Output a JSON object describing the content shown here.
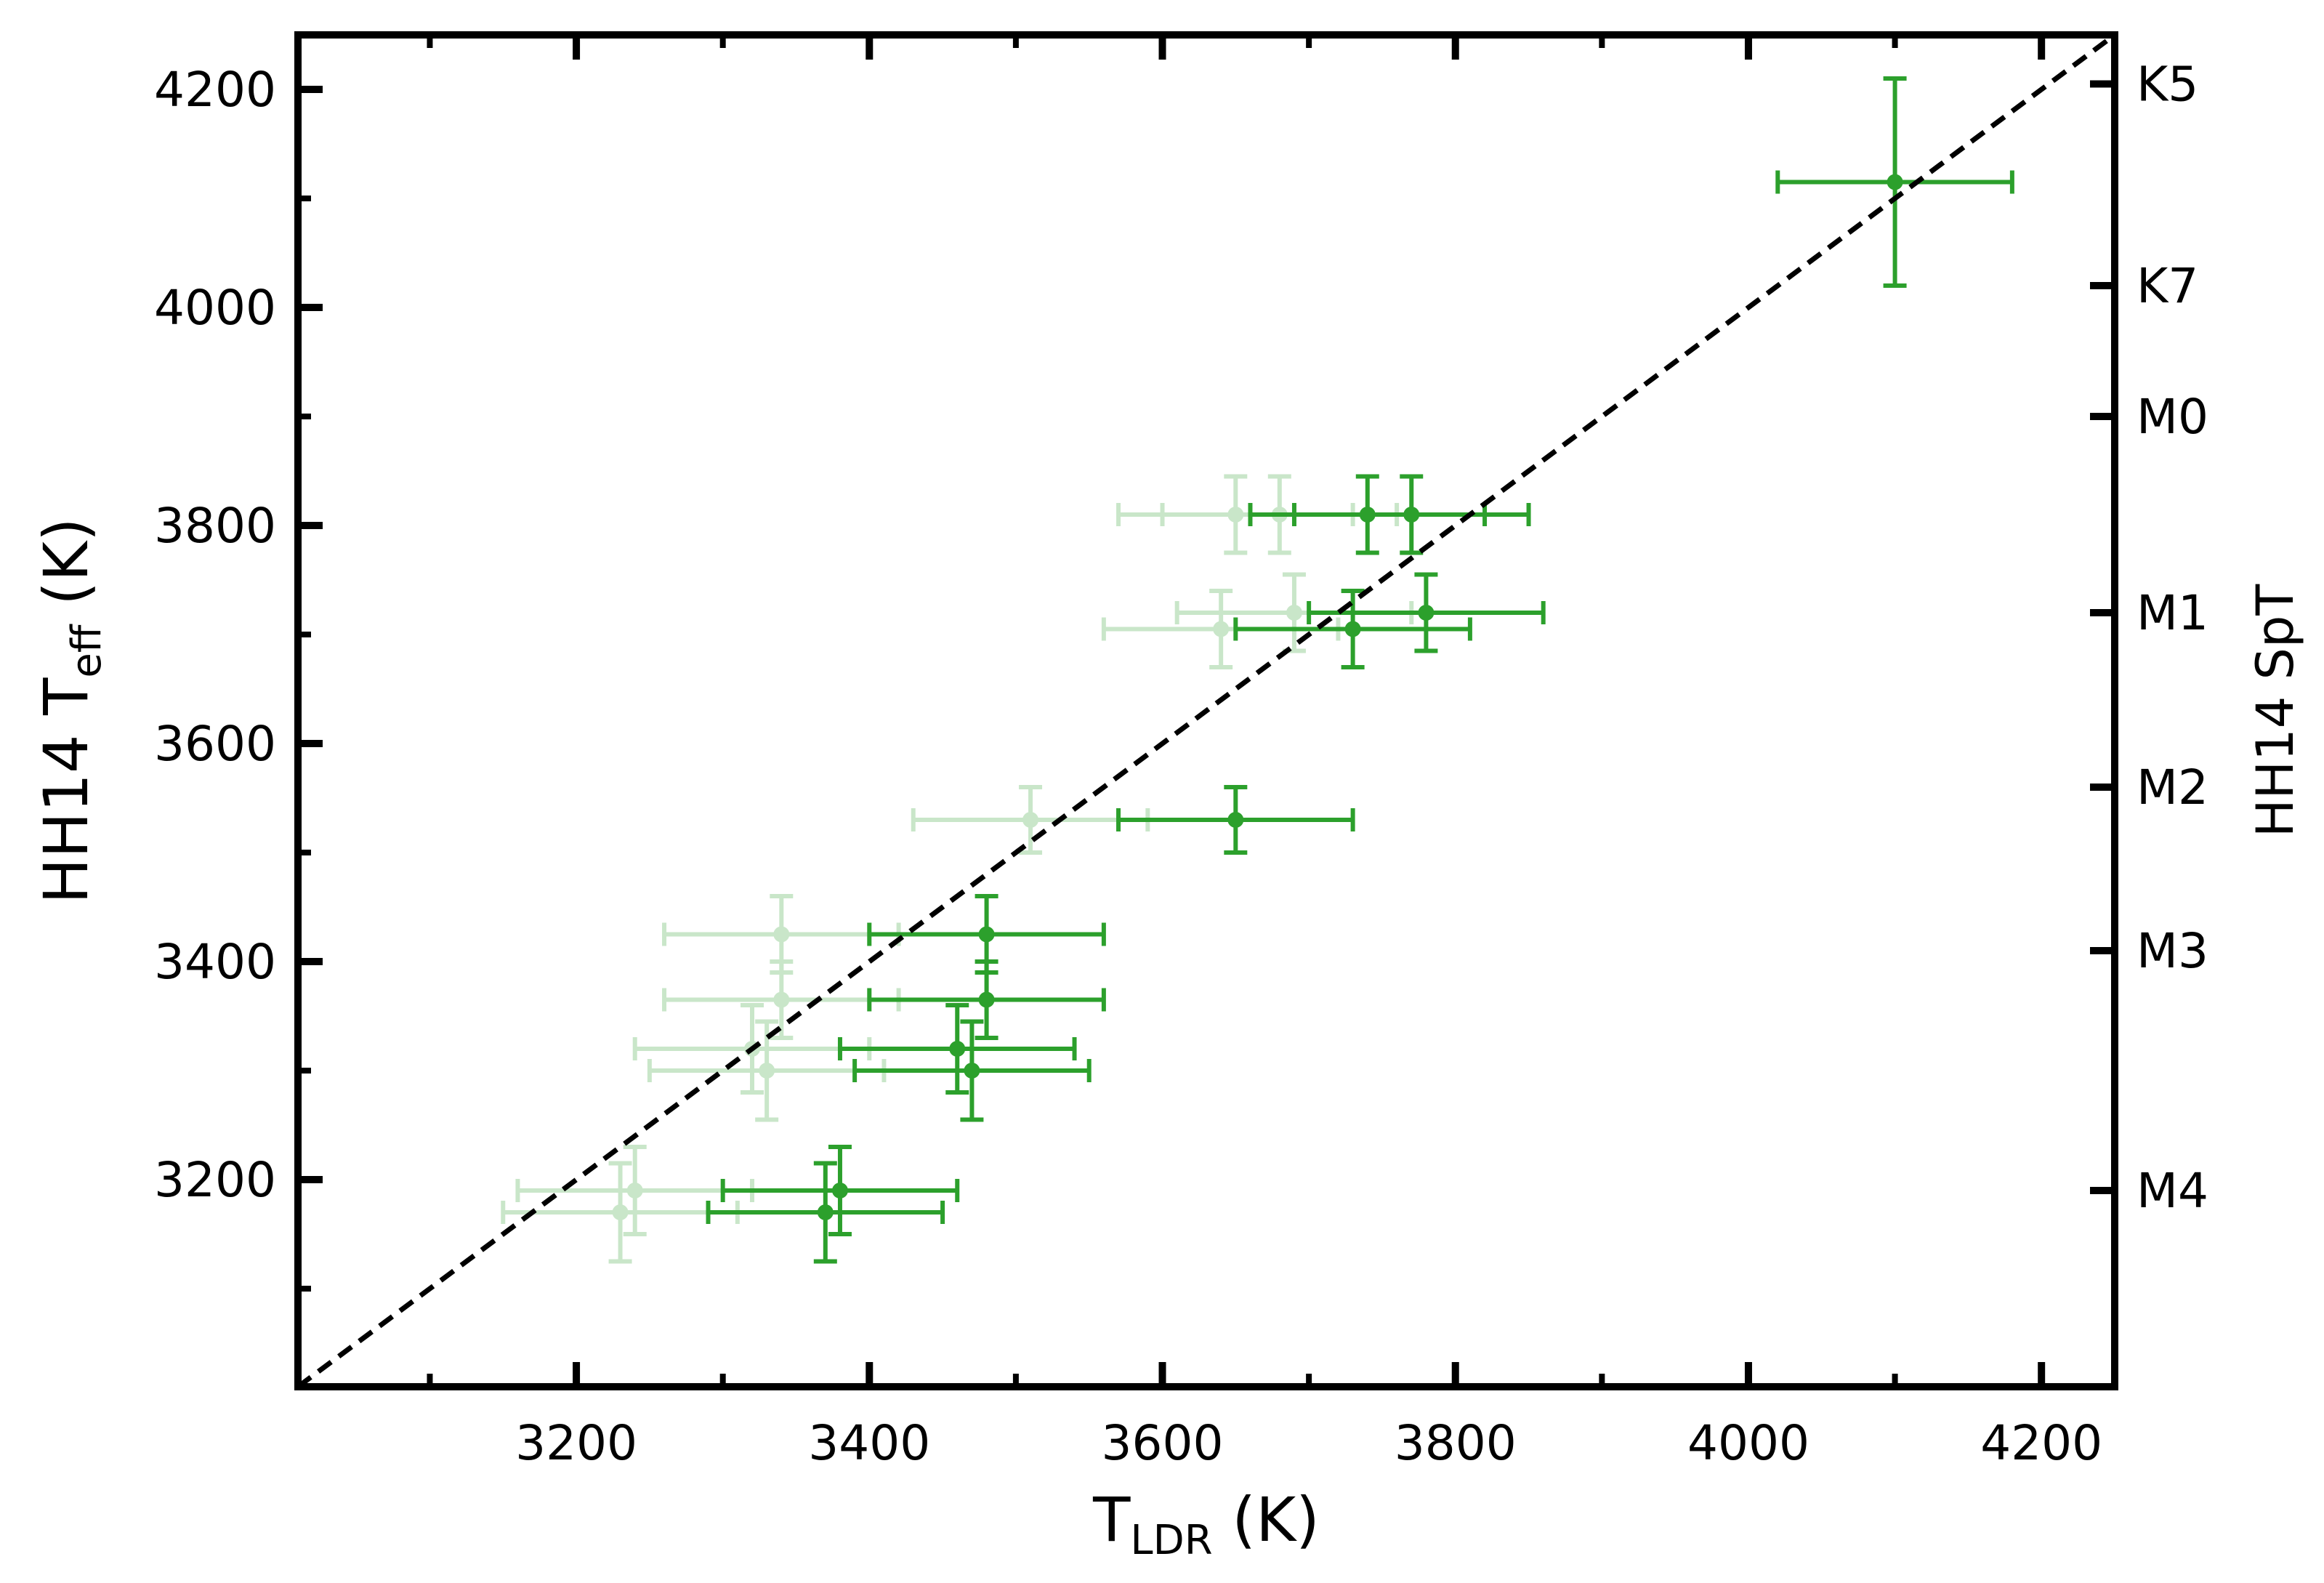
{
  "chart_data": {
    "type": "scatter",
    "xlabel": {
      "main": "T",
      "sub": "LDR",
      "rest": " (K)"
    },
    "ylabel": {
      "main": "HH14 T",
      "sub": "eff",
      "rest": " (K)"
    },
    "y2label": "HH14 SpT",
    "xlim": [
      3010,
      4250
    ],
    "ylim": [
      3010,
      4250
    ],
    "xticks": [
      3200,
      3400,
      3600,
      3800,
      4000,
      4200
    ],
    "yticks": [
      3200,
      3400,
      3600,
      3800,
      4000,
      4200
    ],
    "xticks_minor": [
      3100,
      3300,
      3500,
      3700,
      3900,
      4100
    ],
    "yticks_minor": [
      3100,
      3300,
      3500,
      3700,
      3900,
      4100
    ],
    "right_ticks": [
      {
        "label": "K5",
        "value": 4205
      },
      {
        "label": "K7",
        "value": 4020
      },
      {
        "label": "M0",
        "value": 3900
      },
      {
        "label": "M1",
        "value": 3720
      },
      {
        "label": "M2",
        "value": 3560
      },
      {
        "label": "M3",
        "value": 3410
      },
      {
        "label": "M4",
        "value": 3190
      }
    ],
    "one_to_one_line": true,
    "grid": false,
    "colors": {
      "series": "#2ca02c",
      "line": "#000000"
    },
    "series": [
      {
        "opacity": 1.0,
        "points": [
          {
            "x": 4100,
            "y": 4115,
            "xerr": 80,
            "yerr": 95
          },
          {
            "x": 3740,
            "y": 3810,
            "xerr": 80,
            "yerr": 35
          },
          {
            "x": 3770,
            "y": 3810,
            "xerr": 80,
            "yerr": 35
          },
          {
            "x": 3780,
            "y": 3720,
            "xerr": 80,
            "yerr": 35
          },
          {
            "x": 3730,
            "y": 3705,
            "xerr": 80,
            "yerr": 35
          },
          {
            "x": 3650,
            "y": 3530,
            "xerr": 80,
            "yerr": 30
          },
          {
            "x": 3480,
            "y": 3425,
            "xerr": 80,
            "yerr": 35
          },
          {
            "x": 3480,
            "y": 3365,
            "xerr": 80,
            "yerr": 35
          },
          {
            "x": 3460,
            "y": 3320,
            "xerr": 80,
            "yerr": 40
          },
          {
            "x": 3470,
            "y": 3300,
            "xerr": 80,
            "yerr": 45
          },
          {
            "x": 3380,
            "y": 3190,
            "xerr": 80,
            "yerr": 40
          },
          {
            "x": 3370,
            "y": 3170,
            "xerr": 80,
            "yerr": 45
          }
        ]
      },
      {
        "opacity": 0.25,
        "points": [
          {
            "x": 3650,
            "y": 3810,
            "xerr": 80,
            "yerr": 35
          },
          {
            "x": 3680,
            "y": 3810,
            "xerr": 80,
            "yerr": 35
          },
          {
            "x": 3690,
            "y": 3720,
            "xerr": 80,
            "yerr": 35
          },
          {
            "x": 3640,
            "y": 3705,
            "xerr": 80,
            "yerr": 35
          },
          {
            "x": 3510,
            "y": 3530,
            "xerr": 80,
            "yerr": 30
          },
          {
            "x": 3340,
            "y": 3425,
            "xerr": 80,
            "yerr": 35
          },
          {
            "x": 3340,
            "y": 3365,
            "xerr": 80,
            "yerr": 35
          },
          {
            "x": 3320,
            "y": 3320,
            "xerr": 80,
            "yerr": 40
          },
          {
            "x": 3330,
            "y": 3300,
            "xerr": 80,
            "yerr": 45
          },
          {
            "x": 3240,
            "y": 3190,
            "xerr": 80,
            "yerr": 40
          },
          {
            "x": 3230,
            "y": 3170,
            "xerr": 80,
            "yerr": 45
          }
        ]
      }
    ]
  }
}
